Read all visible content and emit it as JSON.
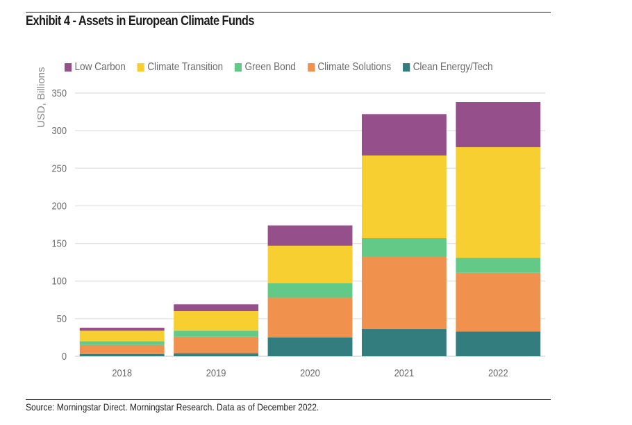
{
  "header": {
    "title": "Exhibit 4 - Assets in European Climate Funds"
  },
  "footer": {
    "source": "Source: Morningstar Direct. Morningstar Research. Data as of December 2022."
  },
  "chart_data": {
    "type": "bar",
    "stacked": true,
    "title": "Exhibit 4 - Assets in European Climate Funds",
    "xlabel": "",
    "ylabel": "USD, Billions",
    "ylim": [
      0,
      350
    ],
    "yticks": [
      0,
      50,
      100,
      150,
      200,
      250,
      300,
      350
    ],
    "grid": true,
    "legend_position": "top",
    "categories": [
      "2018",
      "2019",
      "2020",
      "2021",
      "2022"
    ],
    "series": [
      {
        "name": "Clean Energy/Tech",
        "color": "#347d7e",
        "values": [
          3,
          4,
          25,
          36,
          33
        ]
      },
      {
        "name": "Climate Solutions",
        "color": "#f0914e",
        "values": [
          12,
          22,
          53,
          96,
          78
        ]
      },
      {
        "name": "Green Bond",
        "color": "#63c987",
        "values": [
          5,
          8,
          19,
          25,
          20
        ]
      },
      {
        "name": "Climate Transition",
        "color": "#f7cf31",
        "values": [
          14,
          26,
          50,
          110,
          147
        ]
      },
      {
        "name": "Low Carbon",
        "color": "#954f8b",
        "values": [
          4,
          9,
          27,
          55,
          60
        ]
      }
    ],
    "legend_order": [
      "Low Carbon",
      "Climate Transition",
      "Green Bond",
      "Climate Solutions",
      "Clean Energy/Tech"
    ]
  }
}
